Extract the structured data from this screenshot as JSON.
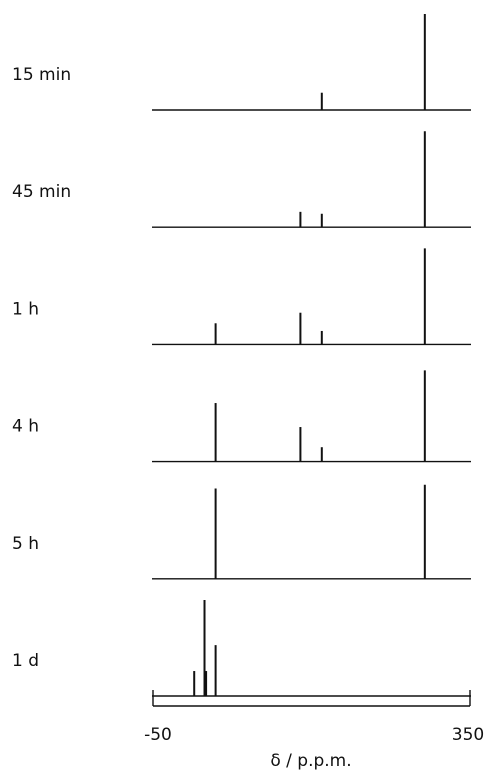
{
  "chart_data": {
    "type": "stick-spectrum",
    "xlabel": "δ / p.p.m.",
    "xlim": [
      -50,
      350
    ],
    "x_tick_labels": [
      "-50",
      "350"
    ],
    "grid": false,
    "colors": {
      "ink": "#111111"
    },
    "intensity_note": "relative stick heights, tallest = 1.0",
    "spectra": [
      {
        "label": "15 min",
        "peaks": [
          {
            "x": 163,
            "h": 0.18
          },
          {
            "x": 293,
            "h": 1.0
          }
        ]
      },
      {
        "label": "45 min",
        "peaks": [
          {
            "x": 136,
            "h": 0.16
          },
          {
            "x": 163,
            "h": 0.14
          },
          {
            "x": 293,
            "h": 1.0
          }
        ]
      },
      {
        "label": "1 h",
        "peaks": [
          {
            "x": 29,
            "h": 0.22
          },
          {
            "x": 136,
            "h": 0.33
          },
          {
            "x": 163,
            "h": 0.14
          },
          {
            "x": 293,
            "h": 1.0
          }
        ]
      },
      {
        "label": "4 h",
        "peaks": [
          {
            "x": 29,
            "h": 0.61
          },
          {
            "x": 136,
            "h": 0.36
          },
          {
            "x": 163,
            "h": 0.15
          },
          {
            "x": 293,
            "h": 0.95
          }
        ]
      },
      {
        "label": "5 h",
        "peaks": [
          {
            "x": 29,
            "h": 0.94
          },
          {
            "x": 293,
            "h": 0.98
          }
        ]
      },
      {
        "label": "1 d",
        "peaks": [
          {
            "x": 2,
            "h": 0.26
          },
          {
            "x": 15,
            "h": 1.0
          },
          {
            "x": 17,
            "h": 0.26
          },
          {
            "x": 29,
            "h": 0.53
          }
        ]
      }
    ]
  }
}
